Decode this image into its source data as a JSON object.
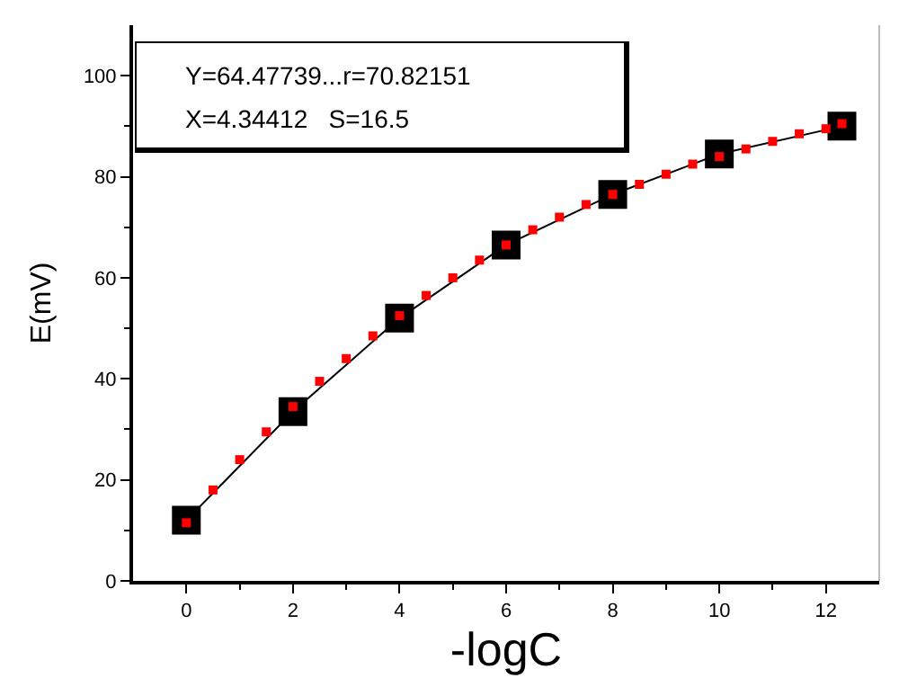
{
  "chart_data": {
    "type": "scatter",
    "xlabel": "-logC",
    "ylabel": "E(mV)",
    "annotations": [
      "Y=64.47739...r=70.82151",
      "X=4.34412   S=16.5"
    ],
    "series": [
      {
        "type": "line",
        "color": "#000000",
        "x": [
          0,
          2,
          4,
          6,
          8,
          10,
          12.3
        ],
        "values": [
          12,
          33.5,
          52,
          66.5,
          76.5,
          84.5,
          90
        ]
      },
      {
        "type": "scatter",
        "color": "#ff0000",
        "x": [
          0,
          0.5,
          1,
          1.5,
          2,
          2.5,
          3,
          3.5,
          4,
          4.5,
          5,
          5.5,
          6,
          6.5,
          7,
          7.5,
          8,
          8.5,
          9,
          9.5,
          10,
          10.5,
          11,
          11.5,
          12,
          12.3
        ],
        "values": [
          11.5,
          18,
          24,
          29.5,
          34.5,
          39.5,
          44,
          48.5,
          52.5,
          56.5,
          60,
          63.5,
          66.5,
          69.5,
          72,
          74.5,
          76.5,
          78.5,
          80.5,
          82.5,
          84,
          85.5,
          87,
          88.5,
          89.5,
          90.5
        ]
      }
    ],
    "marker": "square",
    "line_style": "solid",
    "grid": false,
    "xlim": [
      -1,
      13
    ],
    "xticks": [
      0,
      2,
      4,
      6,
      8,
      10,
      12
    ],
    "ylim": [
      0,
      110
    ],
    "yticks": [
      0,
      20,
      40,
      60,
      80,
      100
    ]
  }
}
